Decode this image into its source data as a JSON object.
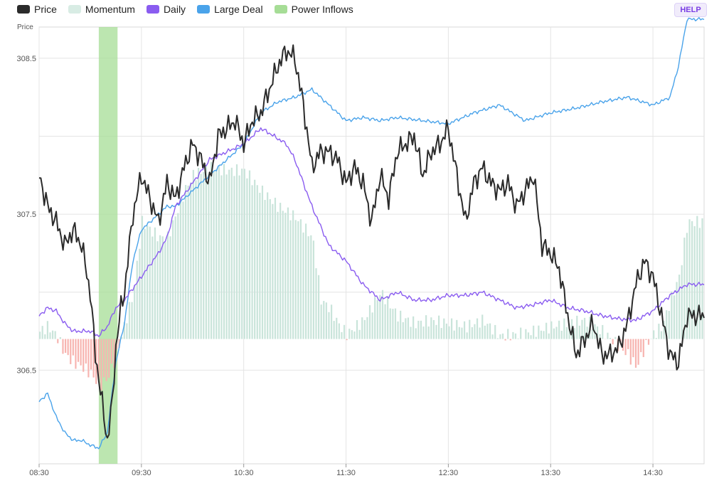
{
  "help_label": "HELP",
  "colors": {
    "price": "#2b2b2b",
    "momentum_pos": "#c9e4da",
    "momentum_neg": "#f7b4b0",
    "daily": "#8a5cf0",
    "large_deal": "#4aa3ea",
    "power_inflows": "#a6dd96"
  },
  "legend": [
    {
      "key": "price",
      "label": "Price",
      "color": "#2b2b2b"
    },
    {
      "key": "momentum",
      "label": "Momentum",
      "color": "#d8ece4"
    },
    {
      "key": "daily",
      "label": "Daily",
      "color": "#8a5cf0"
    },
    {
      "key": "large_deal",
      "label": "Large Deal",
      "color": "#4aa3ea"
    },
    {
      "key": "power_inflows",
      "label": "Power Inflows",
      "color": "#a6dd96"
    }
  ],
  "chart_data": {
    "type": "line",
    "ylabel": "Price",
    "ylim": [
      305.9,
      308.7
    ],
    "yticks": [
      "306.5",
      "307.5",
      "308.5"
    ],
    "xticks": [
      "08:30",
      "09:30",
      "10:30",
      "11:30",
      "12:30",
      "13:30",
      "14:30"
    ],
    "x_start_minutes": 510,
    "x_end_minutes": 900,
    "grid": true,
    "legend_position": "top-left",
    "power_inflows": [
      {
        "from": "09:05",
        "to": "09:16"
      }
    ],
    "series": [
      {
        "name": "Price",
        "x": [
          "08:30",
          "08:35",
          "08:40",
          "08:45",
          "08:50",
          "08:55",
          "09:00",
          "09:03",
          "09:05",
          "09:08",
          "09:10",
          "09:13",
          "09:15",
          "09:18",
          "09:20",
          "09:25",
          "09:30",
          "09:35",
          "09:40",
          "09:45",
          "09:50",
          "09:55",
          "10:00",
          "10:05",
          "10:10",
          "10:15",
          "10:20",
          "10:25",
          "10:30",
          "10:35",
          "10:40",
          "10:45",
          "10:50",
          "10:55",
          "11:00",
          "11:05",
          "11:10",
          "11:15",
          "11:20",
          "11:25",
          "11:30",
          "11:35",
          "11:40",
          "11:45",
          "11:50",
          "11:55",
          "12:00",
          "12:05",
          "12:10",
          "12:15",
          "12:20",
          "12:25",
          "12:30",
          "12:35",
          "12:40",
          "12:45",
          "12:50",
          "12:55",
          "13:00",
          "13:05",
          "13:10",
          "13:15",
          "13:20",
          "13:25",
          "13:30",
          "13:35",
          "13:40",
          "13:45",
          "13:50",
          "13:55",
          "14:00",
          "14:05",
          "14:10",
          "14:15",
          "14:20",
          "14:25",
          "14:30",
          "14:35",
          "14:40",
          "14:45",
          "14:50"
        ],
        "values": [
          307.75,
          307.55,
          307.45,
          307.3,
          307.4,
          307.3,
          307.0,
          306.6,
          306.45,
          306.2,
          306.05,
          306.3,
          306.65,
          306.9,
          307.0,
          307.5,
          307.75,
          307.6,
          307.45,
          307.7,
          307.6,
          307.8,
          307.95,
          307.85,
          307.7,
          308.0,
          308.05,
          308.1,
          307.95,
          308.1,
          308.15,
          308.3,
          308.45,
          308.55,
          308.5,
          308.2,
          307.8,
          307.9,
          307.9,
          307.85,
          307.7,
          307.8,
          307.7,
          307.45,
          307.75,
          307.6,
          307.9,
          307.95,
          308.0,
          307.75,
          307.9,
          307.95,
          308.05,
          307.75,
          307.45,
          307.7,
          307.8,
          307.7,
          307.65,
          307.7,
          307.55,
          307.65,
          307.75,
          307.3,
          307.25,
          307.15,
          306.85,
          306.6,
          306.7,
          306.8,
          306.6,
          306.6,
          306.65,
          306.8,
          307.05,
          307.2,
          307.1,
          306.85,
          306.6,
          306.55,
          306.85
        ],
        "color": "#2b2b2b"
      },
      {
        "name": "Large Deal",
        "x": [
          "08:30",
          "08:35",
          "08:40",
          "08:45",
          "08:50",
          "08:55",
          "09:00",
          "09:05",
          "09:10",
          "09:15",
          "09:20",
          "09:25",
          "09:30",
          "09:35",
          "09:40",
          "09:45",
          "09:50",
          "09:55",
          "10:00",
          "10:10",
          "10:20",
          "10:30",
          "10:40",
          "10:50",
          "11:00",
          "11:10",
          "11:20",
          "11:30",
          "11:40",
          "11:50",
          "12:00",
          "12:15",
          "12:30",
          "12:45",
          "13:00",
          "13:15",
          "13:30",
          "13:45",
          "14:00",
          "14:15",
          "14:30",
          "14:40",
          "14:45",
          "14:50"
        ],
        "values": [
          306.3,
          306.35,
          306.2,
          306.1,
          306.05,
          306.05,
          306.02,
          306.0,
          306.1,
          306.55,
          306.8,
          307.2,
          307.4,
          307.45,
          307.5,
          307.55,
          307.55,
          307.6,
          307.65,
          307.75,
          307.85,
          307.95,
          308.15,
          308.22,
          308.25,
          308.3,
          308.2,
          308.1,
          308.12,
          308.1,
          308.12,
          308.1,
          308.08,
          308.15,
          308.2,
          308.1,
          308.15,
          308.18,
          308.22,
          308.25,
          308.2,
          308.25,
          308.45,
          308.75
        ],
        "color": "#4aa3ea"
      },
      {
        "name": "Daily",
        "x": [
          "08:30",
          "08:35",
          "08:40",
          "08:45",
          "08:50",
          "08:55",
          "09:00",
          "09:05",
          "09:10",
          "09:15",
          "09:20",
          "09:30",
          "09:40",
          "09:45",
          "09:50",
          "10:00",
          "10:10",
          "10:20",
          "10:30",
          "10:40",
          "10:45",
          "10:55",
          "11:00",
          "11:10",
          "11:20",
          "11:30",
          "11:40",
          "11:50",
          "12:00",
          "12:10",
          "12:20",
          "12:30",
          "12:40",
          "12:50",
          "13:00",
          "13:10",
          "13:20",
          "13:30",
          "13:40",
          "13:50",
          "14:00",
          "14:10",
          "14:20",
          "14:30",
          "14:40",
          "14:50"
        ],
        "values": [
          306.85,
          306.9,
          306.88,
          306.8,
          306.75,
          306.75,
          306.75,
          306.72,
          306.78,
          306.9,
          306.95,
          307.1,
          307.25,
          307.35,
          307.55,
          307.7,
          307.85,
          307.9,
          307.95,
          308.05,
          308.02,
          307.95,
          307.85,
          307.55,
          307.3,
          307.2,
          307.05,
          306.95,
          307.0,
          306.95,
          306.95,
          306.98,
          306.98,
          307.0,
          306.95,
          306.9,
          306.92,
          306.95,
          306.9,
          306.88,
          306.85,
          306.83,
          306.82,
          306.88,
          306.98,
          307.05
        ],
        "color": "#8a5cf0"
      },
      {
        "name": "Momentum",
        "x": [
          "08:30",
          "08:35",
          "08:40",
          "08:45",
          "08:50",
          "08:55",
          "09:00",
          "09:05",
          "09:10",
          "09:15",
          "09:20",
          "09:25",
          "09:30",
          "09:35",
          "09:40",
          "09:45",
          "09:50",
          "09:55",
          "10:00",
          "10:10",
          "10:20",
          "10:30",
          "10:40",
          "10:45",
          "10:50",
          "11:00",
          "11:10",
          "11:15",
          "11:20",
          "11:25",
          "11:30",
          "11:40",
          "11:50",
          "12:00",
          "12:10",
          "12:20",
          "12:30",
          "12:40",
          "12:50",
          "13:00",
          "13:10",
          "13:20",
          "13:30",
          "13:40",
          "13:50",
          "14:00",
          "14:10",
          "14:15",
          "14:20",
          "14:25",
          "14:30",
          "14:35",
          "14:40",
          "14:45",
          "14:50"
        ],
        "values": [
          0.05,
          0.08,
          0.02,
          -0.1,
          -0.15,
          -0.18,
          -0.22,
          -0.3,
          -0.25,
          -0.1,
          0.1,
          0.3,
          0.75,
          0.7,
          0.65,
          0.65,
          0.8,
          0.95,
          1.05,
          1.1,
          1.08,
          1.08,
          0.95,
          0.9,
          0.85,
          0.78,
          0.65,
          0.25,
          0.2,
          0.1,
          0.03,
          0.12,
          0.3,
          0.15,
          0.1,
          0.12,
          0.1,
          0.08,
          0.12,
          0.02,
          0.03,
          0.05,
          0.08,
          0.1,
          0.12,
          0.05,
          -0.05,
          -0.1,
          -0.18,
          -0.05,
          0.03,
          0.08,
          0.25,
          0.4,
          0.75
        ],
        "color": "#c9e4da"
      }
    ]
  }
}
